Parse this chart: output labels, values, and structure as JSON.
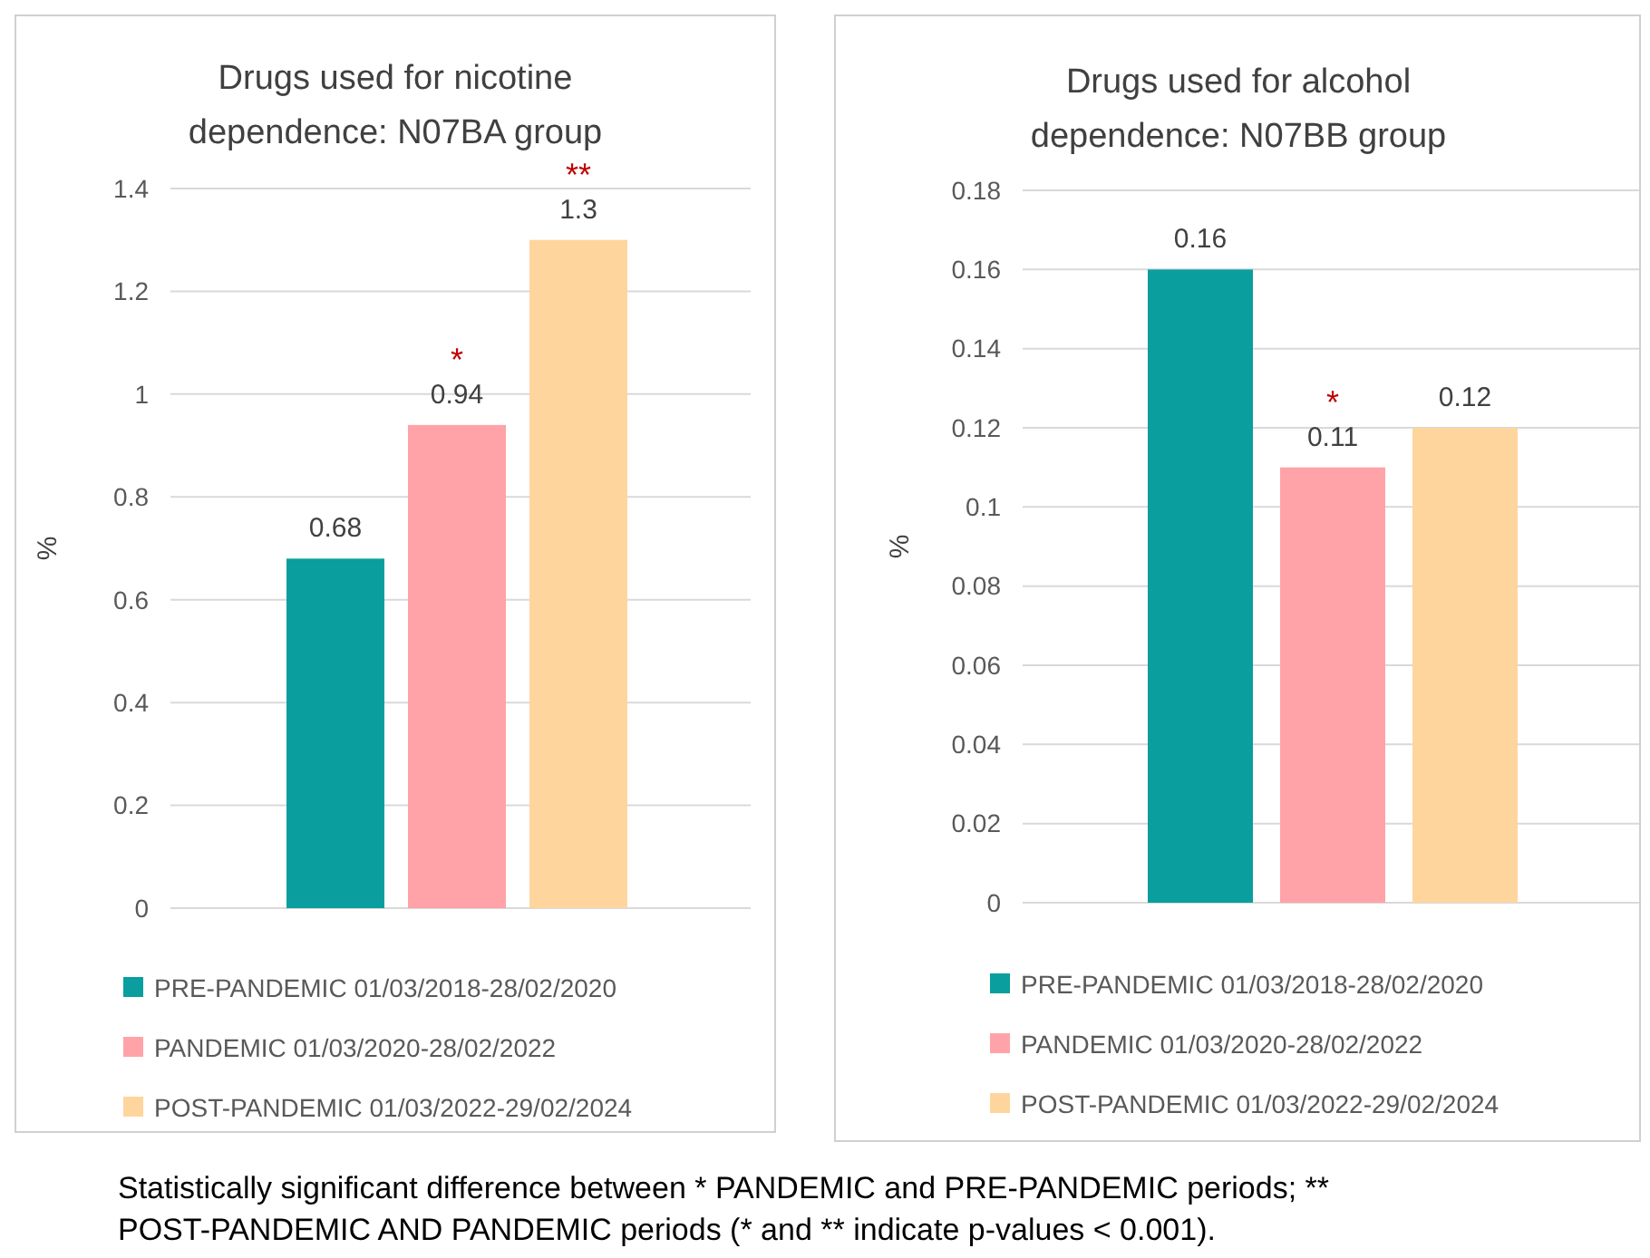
{
  "chart_data": [
    {
      "type": "bar",
      "title": "Drugs used for nicotine dependence: N07BA group",
      "ylabel": "%",
      "categories": [
        null
      ],
      "series": [
        {
          "name": "PRE-PANDEMIC 01/03/2018-28/02/2020",
          "color": "#0a9e9e",
          "values": [
            0.68
          ]
        },
        {
          "name": "PANDEMIC 01/03/2020-28/02/2022",
          "color": "#ffa3a8",
          "values": [
            0.94
          ]
        },
        {
          "name": "POST-PANDEMIC 01/03/2022-29/02/2024",
          "color": "#ffd59e",
          "values": [
            1.3
          ]
        }
      ],
      "ylim": [
        0,
        1.4
      ],
      "yticks": [
        0,
        0.2,
        0.4,
        0.6,
        0.8,
        1,
        1.2,
        1.4
      ],
      "grid": "y",
      "legend": "bottom",
      "data_labels": true,
      "annotations": [
        {
          "text": "*",
          "y": 0.94
        },
        {
          "text": "**",
          "y": 1.3
        },
        "Statistically significant difference between * PANDEMIC and PRE-PANDEMIC periods; ** POST-PANDEMIC AND PANDEMIC periods (* and ** indicate p-values < 0.001)."
      ]
    },
    {
      "type": "bar",
      "title": "Drugs used for alcohol dependence: N07BB group",
      "ylabel": "%",
      "categories": [
        null
      ],
      "series": [
        {
          "name": "PRE-PANDEMIC 01/03/2018-28/02/2020",
          "color": "#0a9e9e",
          "values": [
            0.16
          ]
        },
        {
          "name": "PANDEMIC 01/03/2020-28/02/2022",
          "color": "#ffa3a8",
          "values": [
            0.11
          ]
        },
        {
          "name": "POST-PANDEMIC 01/03/2022-29/02/2024",
          "color": "#ffd59e",
          "values": [
            0.12
          ]
        }
      ],
      "ylim": [
        0,
        0.18
      ],
      "yticks": [
        0,
        0.02,
        0.04,
        0.06,
        0.08,
        0.1,
        0.12,
        0.14,
        0.16,
        0.18
      ],
      "grid": "y",
      "legend": "bottom",
      "data_labels": true,
      "annotations": [
        {
          "text": "*",
          "y": 0.11
        }
      ]
    }
  ]
}
